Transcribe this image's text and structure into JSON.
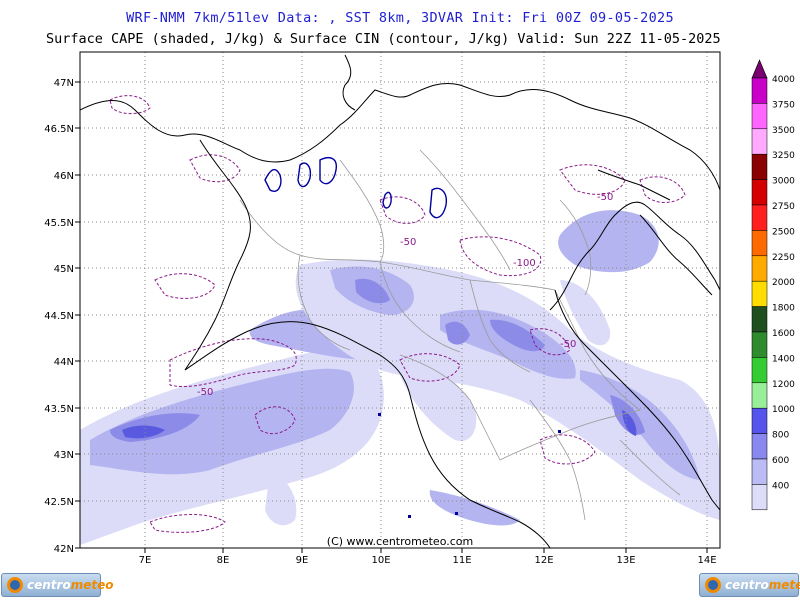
{
  "header": {
    "line1": "WRF-NMM 7km/51lev  Data: , SST 8km, 3DVAR  Init: Fri 00Z 09-05-2025",
    "line2": "Surface CAPE (shaded, J/kg) & Surface CIN (contour, J/kg)  Valid: Sun 22Z 11-05-2025"
  },
  "map": {
    "lat_labels": [
      "47N",
      "46.5N",
      "46N",
      "45.5N",
      "45N",
      "44.5N",
      "44N",
      "43.5N",
      "43N",
      "42.5N",
      "42N"
    ],
    "lon_labels": [
      "7E",
      "8E",
      "9E",
      "10E",
      "11E",
      "12E",
      "13E",
      "14E"
    ],
    "extent": {
      "lon_min": 6.3,
      "lon_max": 14.15,
      "lat_min": 42,
      "lat_max": 47.2
    },
    "copyright": "(C) www.centrometeo.com",
    "cin_contour_labels": [
      "-50",
      "-50",
      "-100",
      "-50",
      "-50"
    ]
  },
  "colorbar": {
    "levels": [
      "4000",
      "3750",
      "3500",
      "3250",
      "3000",
      "2750",
      "2500",
      "2250",
      "2000",
      "1800",
      "1600",
      "1400",
      "1200",
      "1000",
      "800",
      "600",
      "400"
    ],
    "colors": [
      "#7a0070",
      "#c800c8",
      "#ff66ff",
      "#ffaaff",
      "#8b0000",
      "#d40000",
      "#ff2020",
      "#ff6a00",
      "#ffaa00",
      "#ffdd00",
      "#1f4f1f",
      "#2e8b2e",
      "#33cc33",
      "#99ee99",
      "#5555ee",
      "#8888ee",
      "#bbbbf5",
      "#ddddf9"
    ]
  },
  "logos": {
    "left": {
      "name_a": "centro",
      "name_b": "meteo"
    },
    "right": {
      "name_a": "centro",
      "name_b": "meteo"
    }
  },
  "colors": {
    "cape_light": "#dcdcf8",
    "cape_mid": "#b4b4f0",
    "cape_strong": "#8c8ce8",
    "cape_peak": "#5a5ae0",
    "cin_contour": "#8b1a8b",
    "coast_border": "#000000",
    "lakes": "#0000a0"
  }
}
